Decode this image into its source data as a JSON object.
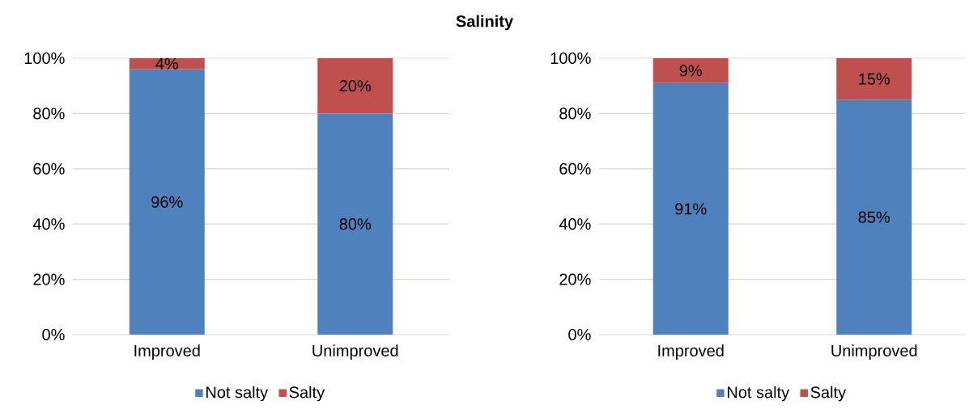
{
  "chart_data": [
    {
      "type": "bar",
      "title": "Salinity",
      "stacked": true,
      "categories": [
        "Improved",
        "Unimproved"
      ],
      "series": [
        {
          "name": "Not salty",
          "color": "#4f81bd",
          "values": [
            96,
            80
          ],
          "value_labels": [
            "96%",
            "80%"
          ]
        },
        {
          "name": "Salty",
          "color": "#c0504d",
          "values": [
            4,
            20
          ],
          "value_labels": [
            "4%",
            "20%"
          ]
        }
      ],
      "ylim": [
        0,
        100
      ],
      "yticks": [
        {
          "value": 0,
          "label": "0%"
        },
        {
          "value": 20,
          "label": "20%"
        },
        {
          "value": 40,
          "label": "40%"
        },
        {
          "value": 60,
          "label": "60%"
        },
        {
          "value": 80,
          "label": "80%"
        },
        {
          "value": 100,
          "label": "100%"
        }
      ],
      "grid": "y",
      "legend": "bottom"
    },
    {
      "type": "bar",
      "stacked": true,
      "categories": [
        "Improved",
        "Unimproved"
      ],
      "series": [
        {
          "name": "Not salty",
          "color": "#4f81bd",
          "values": [
            91,
            85
          ],
          "value_labels": [
            "91%",
            "85%"
          ]
        },
        {
          "name": "Salty",
          "color": "#c0504d",
          "values": [
            9,
            15
          ],
          "value_labels": [
            "9%",
            "15%"
          ]
        }
      ],
      "ylim": [
        0,
        100
      ],
      "yticks": [
        {
          "value": 0,
          "label": "0%"
        },
        {
          "value": 20,
          "label": "20%"
        },
        {
          "value": 40,
          "label": "40%"
        },
        {
          "value": 60,
          "label": "60%"
        },
        {
          "value": 80,
          "label": "80%"
        },
        {
          "value": 100,
          "label": "100%"
        }
      ],
      "grid": "y",
      "legend": "bottom"
    }
  ]
}
